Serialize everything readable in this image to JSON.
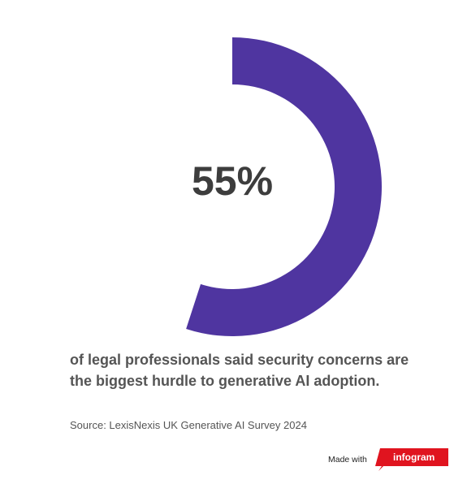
{
  "chart_data": {
    "type": "pie",
    "categories": [
      ""
    ],
    "values": [
      55
    ],
    "total": 100,
    "label": "55%",
    "color": "#4f35a0"
  },
  "caption": {
    "line1": "of legal professionals said security concerns are",
    "line2": "the biggest hurdle to generative AI adoption."
  },
  "source": "Source: LexisNexis UK Generative AI Survey 2024",
  "footer": {
    "made_with": "Made with",
    "brand": "infogram",
    "brand_color": "#e0141f"
  }
}
